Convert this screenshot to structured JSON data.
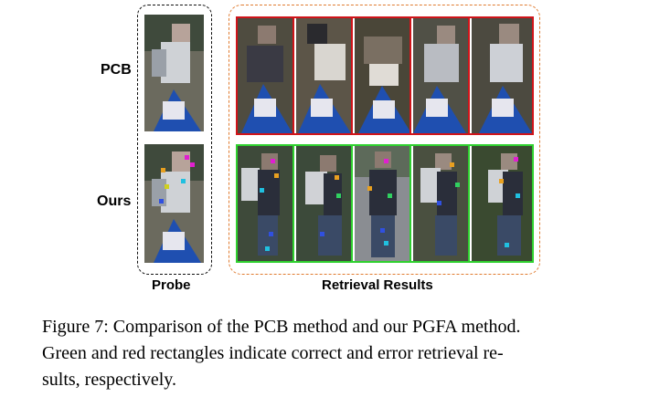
{
  "figure": {
    "row_labels": [
      "PCB",
      "Ours"
    ],
    "column_labels": {
      "probe": "Probe",
      "retrieval": "Retrieval Results"
    }
  },
  "caption": {
    "line1": "Figure 7: Comparison of the PCB method and our PGFA method.",
    "line2": "Green and red rectangles indicate correct and error retrieval re-",
    "line3": "sults, respectively."
  },
  "colors": {
    "correct": "#2fd12f",
    "error": "#d0141a",
    "retrieval_frame": "#e07b30"
  }
}
